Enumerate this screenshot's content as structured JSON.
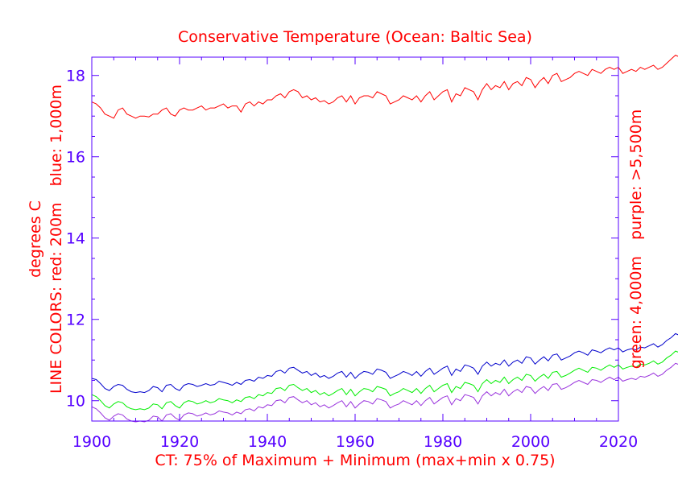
{
  "chart_data": {
    "type": "line",
    "title": "Conservative Temperature (Ocean: Baltic Sea)",
    "xlabel": "CT: 75% of Maximum + Minimum (max+min x 0.75)",
    "ylabel_left": [
      "LINE COLORS: red: 200m",
      "degrees C",
      "blue: 1,000m"
    ],
    "ylabel_right": [
      "green: 4,000m",
      "purple: >5,500m"
    ],
    "xlim": [
      1900,
      2020
    ],
    "ylim": [
      9.5,
      18.45
    ],
    "x_ticks": [
      1900,
      1920,
      1940,
      1960,
      1980,
      2000,
      2020
    ],
    "x_tick_labels": [
      "1900",
      "1920",
      "1940",
      "1960",
      "1980",
      "2000",
      "2020"
    ],
    "y_ticks": [
      10,
      12,
      14,
      16,
      18
    ],
    "y_tick_labels": [
      "10",
      "12",
      "14",
      "16",
      "18"
    ],
    "x_start": 1900,
    "x_step": 1,
    "grid": false,
    "colors": {
      "axis": "#5500ff",
      "text": "#ff0000"
    },
    "series": [
      {
        "name": "200m",
        "color": "#ff0000",
        "values": [
          17.35,
          17.3,
          17.2,
          17.05,
          17.0,
          16.95,
          17.15,
          17.2,
          17.05,
          17.0,
          16.95,
          17.0,
          17.0,
          16.98,
          17.05,
          17.05,
          17.15,
          17.2,
          17.05,
          17.0,
          17.15,
          17.2,
          17.15,
          17.15,
          17.2,
          17.25,
          17.15,
          17.2,
          17.2,
          17.25,
          17.3,
          17.2,
          17.25,
          17.25,
          17.1,
          17.3,
          17.35,
          17.25,
          17.35,
          17.3,
          17.4,
          17.4,
          17.5,
          17.55,
          17.45,
          17.6,
          17.65,
          17.6,
          17.45,
          17.5,
          17.4,
          17.45,
          17.35,
          17.38,
          17.3,
          17.35,
          17.45,
          17.5,
          17.35,
          17.5,
          17.3,
          17.45,
          17.5,
          17.5,
          17.45,
          17.6,
          17.55,
          17.5,
          17.3,
          17.35,
          17.4,
          17.5,
          17.45,
          17.4,
          17.5,
          17.35,
          17.5,
          17.6,
          17.4,
          17.5,
          17.6,
          17.65,
          17.35,
          17.55,
          17.5,
          17.7,
          17.65,
          17.6,
          17.4,
          17.65,
          17.8,
          17.65,
          17.75,
          17.7,
          17.85,
          17.65,
          17.8,
          17.85,
          17.75,
          17.95,
          17.9,
          17.7,
          17.85,
          17.95,
          17.8,
          18.0,
          18.05,
          17.85,
          17.9,
          17.95,
          18.05,
          18.1,
          18.05,
          18.0,
          18.15,
          18.1,
          18.05,
          18.15,
          18.2,
          18.15,
          18.2,
          18.05,
          18.1,
          18.15,
          18.1,
          18.2,
          18.15,
          18.2,
          18.25,
          18.15,
          18.2,
          18.3,
          18.4,
          18.5,
          18.45,
          18.4,
          18.5
        ]
      },
      {
        "name": "1,000m",
        "color": "#0000cc",
        "values": [
          10.55,
          10.52,
          10.42,
          10.3,
          10.25,
          10.35,
          10.4,
          10.38,
          10.28,
          10.22,
          10.2,
          10.22,
          10.2,
          10.25,
          10.35,
          10.32,
          10.22,
          10.38,
          10.4,
          10.3,
          10.25,
          10.38,
          10.42,
          10.4,
          10.35,
          10.38,
          10.42,
          10.38,
          10.4,
          10.48,
          10.45,
          10.42,
          10.38,
          10.45,
          10.4,
          10.5,
          10.52,
          10.48,
          10.58,
          10.55,
          10.62,
          10.6,
          10.72,
          10.75,
          10.68,
          10.8,
          10.82,
          10.75,
          10.68,
          10.72,
          10.62,
          10.68,
          10.58,
          10.62,
          10.55,
          10.6,
          10.68,
          10.72,
          10.58,
          10.7,
          10.55,
          10.65,
          10.72,
          10.7,
          10.65,
          10.78,
          10.75,
          10.7,
          10.55,
          10.6,
          10.65,
          10.72,
          10.68,
          10.62,
          10.72,
          10.6,
          10.72,
          10.8,
          10.65,
          10.72,
          10.8,
          10.85,
          10.62,
          10.78,
          10.72,
          10.88,
          10.85,
          10.8,
          10.65,
          10.85,
          10.95,
          10.85,
          10.92,
          10.88,
          11.0,
          10.85,
          10.95,
          11.0,
          10.92,
          11.08,
          11.05,
          10.9,
          11.0,
          11.08,
          10.98,
          11.12,
          11.15,
          11.0,
          11.05,
          11.1,
          11.18,
          11.22,
          11.18,
          11.12,
          11.25,
          11.22,
          11.18,
          11.25,
          11.3,
          11.25,
          11.3,
          11.2,
          11.25,
          11.28,
          11.25,
          11.32,
          11.3,
          11.35,
          11.4,
          11.32,
          11.38,
          11.48,
          11.55,
          11.65,
          11.6,
          11.55,
          11.68
        ]
      },
      {
        "name": "4,000m",
        "color": "#00ee00",
        "values": [
          10.15,
          10.1,
          10.0,
          9.88,
          9.82,
          9.92,
          9.98,
          9.95,
          9.85,
          9.8,
          9.78,
          9.8,
          9.78,
          9.82,
          9.92,
          9.9,
          9.8,
          9.95,
          9.98,
          9.88,
          9.82,
          9.95,
          10.0,
          9.98,
          9.92,
          9.95,
          10.0,
          9.95,
          9.98,
          10.05,
          10.02,
          10.0,
          9.95,
          10.02,
          9.98,
          10.08,
          10.1,
          10.05,
          10.15,
          10.12,
          10.2,
          10.18,
          10.3,
          10.32,
          10.25,
          10.38,
          10.4,
          10.32,
          10.25,
          10.3,
          10.2,
          10.25,
          10.15,
          10.2,
          10.12,
          10.18,
          10.25,
          10.3,
          10.15,
          10.28,
          10.12,
          10.22,
          10.3,
          10.28,
          10.22,
          10.35,
          10.32,
          10.28,
          10.12,
          10.18,
          10.22,
          10.3,
          10.25,
          10.2,
          10.3,
          10.18,
          10.3,
          10.38,
          10.22,
          10.3,
          10.38,
          10.42,
          10.2,
          10.35,
          10.3,
          10.45,
          10.42,
          10.38,
          10.22,
          10.42,
          10.52,
          10.42,
          10.5,
          10.45,
          10.58,
          10.42,
          10.52,
          10.58,
          10.5,
          10.65,
          10.62,
          10.48,
          10.58,
          10.65,
          10.55,
          10.7,
          10.72,
          10.58,
          10.62,
          10.68,
          10.75,
          10.8,
          10.75,
          10.7,
          10.82,
          10.8,
          10.75,
          10.82,
          10.88,
          10.82,
          10.88,
          10.78,
          10.82,
          10.85,
          10.82,
          10.9,
          10.88,
          10.92,
          10.98,
          10.9,
          10.95,
          11.05,
          11.12,
          11.22,
          11.18,
          11.12,
          11.25
        ]
      },
      {
        "name": ">5,500m",
        "color": "#9933dd",
        "values": [
          9.85,
          9.8,
          9.7,
          9.58,
          9.52,
          9.62,
          9.68,
          9.65,
          9.55,
          9.5,
          9.48,
          9.5,
          9.48,
          9.52,
          9.62,
          9.6,
          9.5,
          9.65,
          9.68,
          9.58,
          9.52,
          9.65,
          9.7,
          9.68,
          9.62,
          9.65,
          9.7,
          9.65,
          9.68,
          9.75,
          9.72,
          9.7,
          9.65,
          9.72,
          9.68,
          9.78,
          9.8,
          9.75,
          9.85,
          9.82,
          9.9,
          9.88,
          10.0,
          10.02,
          9.95,
          10.08,
          10.1,
          10.02,
          9.95,
          10.0,
          9.9,
          9.95,
          9.85,
          9.9,
          9.82,
          9.88,
          9.95,
          10.0,
          9.85,
          9.98,
          9.82,
          9.92,
          10.0,
          9.98,
          9.92,
          10.05,
          10.02,
          9.98,
          9.82,
          9.88,
          9.92,
          10.0,
          9.95,
          9.9,
          10.0,
          9.88,
          10.0,
          10.08,
          9.92,
          10.0,
          10.08,
          10.12,
          9.9,
          10.05,
          10.0,
          10.15,
          10.12,
          10.08,
          9.92,
          10.12,
          10.22,
          10.12,
          10.2,
          10.15,
          10.28,
          10.12,
          10.22,
          10.28,
          10.2,
          10.35,
          10.32,
          10.18,
          10.28,
          10.35,
          10.25,
          10.4,
          10.42,
          10.28,
          10.32,
          10.38,
          10.45,
          10.5,
          10.45,
          10.4,
          10.52,
          10.5,
          10.45,
          10.52,
          10.58,
          10.52,
          10.58,
          10.48,
          10.52,
          10.55,
          10.52,
          10.6,
          10.58,
          10.62,
          10.68,
          10.6,
          10.65,
          10.75,
          10.82,
          10.92,
          10.88,
          10.82,
          10.95
        ]
      }
    ]
  }
}
